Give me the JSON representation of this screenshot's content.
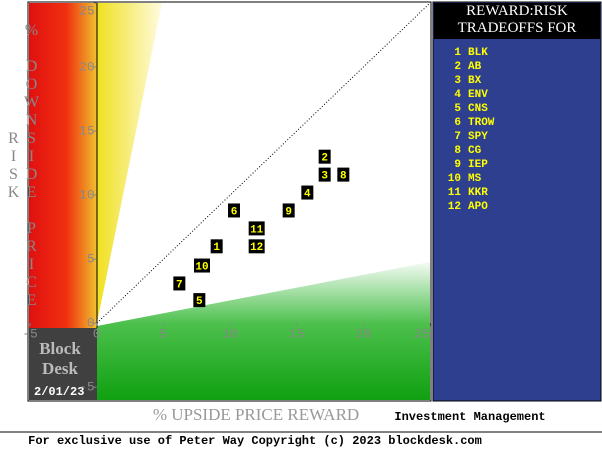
{
  "chart_data": {
    "type": "scatter",
    "title": "REWARD:RISK TRADEOFFS FOR",
    "x_label": "% UPSIDE PRICE REWARD",
    "y_label": "% DOWNSIDE PRICE RISK",
    "brand_line1": "Block",
    "brand_line2": "Desk",
    "date": "2/01/23",
    "sector": "Investment Management",
    "footer": "For exclusive use of Peter Way Copyright (c) 2023 blockdesk.com",
    "labels": [
      "1",
      "2",
      "3",
      "4",
      "5",
      "6",
      "7",
      "8",
      "9",
      "10",
      "11",
      "12"
    ],
    "tickers": [
      "BLK",
      "AB",
      "BX",
      "ENV",
      "CNS",
      "TROW",
      "SPY",
      "CG",
      "IEP",
      "MS",
      "KKR",
      "APO"
    ],
    "x": [
      9.0,
      17.1,
      17.1,
      15.8,
      7.7,
      10.3,
      6.2,
      18.5,
      14.4,
      7.9,
      12.0,
      12.0
    ],
    "values": [
      6.0,
      13.0,
      11.6,
      10.2,
      1.8,
      8.8,
      3.1,
      11.6,
      8.8,
      4.5,
      7.4,
      6.0
    ],
    "marker_color": "#000000",
    "marker_text_color": "#ffff00",
    "xlim": [
      -5,
      25
    ],
    "ylim": [
      -6,
      25
    ],
    "xticks": [
      -5,
      0,
      5,
      10,
      15,
      20,
      25
    ],
    "yticks": [
      -5,
      0,
      5,
      10,
      15,
      20,
      25
    ]
  }
}
